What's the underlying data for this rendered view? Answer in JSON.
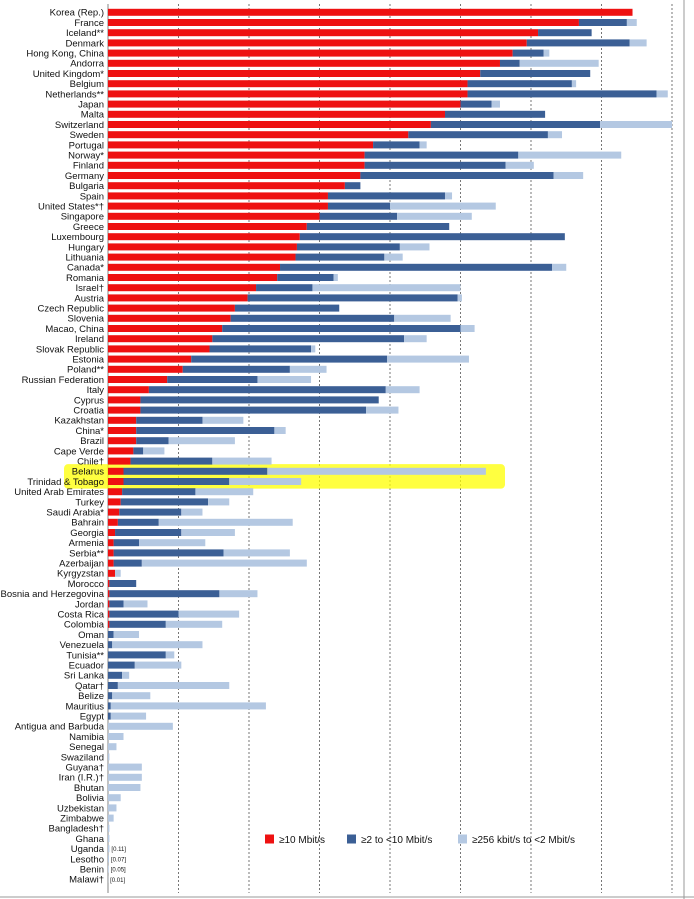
{
  "chart_data": {
    "type": "bar",
    "orientation": "horizontal",
    "stacked": true,
    "title": "",
    "xlabel": "",
    "ylabel": "",
    "xlim": [
      0,
      40
    ],
    "grid": true,
    "legend_position": "bottom-right",
    "highlighted": [
      "Belarus",
      "Trinidad & Tobago"
    ],
    "colors": {
      "s1": "#ee1111",
      "s2": "#3b5f95",
      "s3": "#b4c8e2",
      "highlight": "#ffff00",
      "grid": "#555555"
    },
    "series": [
      {
        "name": "≥10 Mbit/s",
        "key": "s1"
      },
      {
        "name": "≥2 to <10 Mbit/s",
        "key": "s2"
      },
      {
        "name": "≥256 kbit/s to <2 Mbit/s",
        "key": "s3"
      }
    ],
    "rows": [
      {
        "label": "Korea (Rep.)",
        "s1": 37.2,
        "s2": 0,
        "s3": 0
      },
      {
        "label": "France",
        "s1": 33.4,
        "s2": 3.4,
        "s3": 0.7
      },
      {
        "label": "Iceland**",
        "s1": 30.5,
        "s2": 3.8,
        "s3": 0
      },
      {
        "label": "Denmark",
        "s1": 29.7,
        "s2": 7.3,
        "s3": 1.2
      },
      {
        "label": "Hong Kong, China",
        "s1": 28.7,
        "s2": 2.2,
        "s3": 0.4
      },
      {
        "label": "Andorra",
        "s1": 27.8,
        "s2": 1.4,
        "s3": 5.6
      },
      {
        "label": "United Kingdom*",
        "s1": 26.4,
        "s2": 7.8,
        "s3": 0
      },
      {
        "label": "Belgium",
        "s1": 25.5,
        "s2": 7.4,
        "s3": 0.3
      },
      {
        "label": "Netherlands**",
        "s1": 25.5,
        "s2": 13.4,
        "s3": 0.8
      },
      {
        "label": "Japan",
        "s1": 25.0,
        "s2": 2.2,
        "s3": 0.6
      },
      {
        "label": "Malta",
        "s1": 23.9,
        "s2": 7.1,
        "s3": 0
      },
      {
        "label": "Switzerland",
        "s1": 22.9,
        "s2": 12.0,
        "s3": 5.1
      },
      {
        "label": "Sweden",
        "s1": 21.3,
        "s2": 9.9,
        "s3": 1.0
      },
      {
        "label": "Portugal",
        "s1": 18.8,
        "s2": 3.3,
        "s3": 0.5
      },
      {
        "label": "Norway*",
        "s1": 18.2,
        "s2": 10.9,
        "s3": 7.3
      },
      {
        "label": "Finland",
        "s1": 18.2,
        "s2": 10.0,
        "s3": 2.0
      },
      {
        "label": "Germany",
        "s1": 17.9,
        "s2": 13.7,
        "s3": 2.1
      },
      {
        "label": "Bulgaria",
        "s1": 16.8,
        "s2": 1.1,
        "s3": 0
      },
      {
        "label": "Spain",
        "s1": 15.6,
        "s2": 8.3,
        "s3": 0.5
      },
      {
        "label": "United States*†",
        "s1": 15.6,
        "s2": 4.4,
        "s3": 7.5
      },
      {
        "label": "Singapore",
        "s1": 15.0,
        "s2": 5.5,
        "s3": 5.3
      },
      {
        "label": "Greece",
        "s1": 14.1,
        "s2": 10.1,
        "s3": 0
      },
      {
        "label": "Luxembourg",
        "s1": 13.6,
        "s2": 18.8,
        "s3": 0
      },
      {
        "label": "Hungary",
        "s1": 13.4,
        "s2": 7.3,
        "s3": 2.1
      },
      {
        "label": "Lithuania",
        "s1": 13.3,
        "s2": 6.3,
        "s3": 1.3
      },
      {
        "label": "Canada*",
        "s1": 12.2,
        "s2": 19.3,
        "s3": 1.0
      },
      {
        "label": "Romania",
        "s1": 12.0,
        "s2": 4.0,
        "s3": 0.3
      },
      {
        "label": "Israel†",
        "s1": 10.5,
        "s2": 4.0,
        "s3": 10.5
      },
      {
        "label": "Austria",
        "s1": 9.9,
        "s2": 14.9,
        "s3": 0.3
      },
      {
        "label": "Czech Republic",
        "s1": 9.0,
        "s2": 7.4,
        "s3": 0
      },
      {
        "label": "Slovenia",
        "s1": 8.7,
        "s2": 11.6,
        "s3": 4.0
      },
      {
        "label": "Macao, China",
        "s1": 8.1,
        "s2": 16.9,
        "s3": 1.0
      },
      {
        "label": "Ireland",
        "s1": 7.4,
        "s2": 13.6,
        "s3": 1.6
      },
      {
        "label": "Slovak Republic",
        "s1": 7.2,
        "s2": 7.2,
        "s3": 0.3
      },
      {
        "label": "Estonia",
        "s1": 5.9,
        "s2": 13.9,
        "s3": 5.8
      },
      {
        "label": "Poland**",
        "s1": 5.3,
        "s2": 7.6,
        "s3": 2.6
      },
      {
        "label": "Russian Federation",
        "s1": 4.2,
        "s2": 6.4,
        "s3": 3.8
      },
      {
        "label": "Italy",
        "s1": 2.9,
        "s2": 16.8,
        "s3": 2.4
      },
      {
        "label": "Cyprus",
        "s1": 2.3,
        "s2": 16.9,
        "s3": 0
      },
      {
        "label": "Croatia",
        "s1": 2.3,
        "s2": 16.0,
        "s3": 2.3
      },
      {
        "label": "Kazakhstan",
        "s1": 2.0,
        "s2": 4.7,
        "s3": 2.9
      },
      {
        "label": "China*",
        "s1": 2.0,
        "s2": 9.8,
        "s3": 0.8
      },
      {
        "label": "Brazil",
        "s1": 2.0,
        "s2": 2.3,
        "s3": 4.7
      },
      {
        "label": "Cape Verde",
        "s1": 1.8,
        "s2": 0.7,
        "s3": 1.5
      },
      {
        "label": "Chile†",
        "s1": 1.6,
        "s2": 5.8,
        "s3": 4.2
      },
      {
        "label": "Belarus",
        "s1": 1.1,
        "s2": 10.2,
        "s3": 15.5
      },
      {
        "label": "Trinidad & Tobago",
        "s1": 1.1,
        "s2": 7.5,
        "s3": 5.1
      },
      {
        "label": "United Arab Emirates",
        "s1": 1.0,
        "s2": 5.2,
        "s3": 4.1
      },
      {
        "label": "Turkey",
        "s1": 0.9,
        "s2": 6.2,
        "s3": 1.5
      },
      {
        "label": "Saudi Arabia*",
        "s1": 0.8,
        "s2": 4.4,
        "s3": 1.5
      },
      {
        "label": "Bahrain",
        "s1": 0.7,
        "s2": 2.9,
        "s3": 9.5
      },
      {
        "label": "Georgia",
        "s1": 0.5,
        "s2": 4.7,
        "s3": 3.8
      },
      {
        "label": "Armenia",
        "s1": 0.4,
        "s2": 1.8,
        "s3": 4.7
      },
      {
        "label": "Serbia**",
        "s1": 0.4,
        "s2": 7.8,
        "s3": 4.7
      },
      {
        "label": "Azerbaijan",
        "s1": 0.4,
        "s2": 2.0,
        "s3": 11.7
      },
      {
        "label": "Kyrgyzstan",
        "s1": 0.5,
        "s2": 0,
        "s3": 0.4
      },
      {
        "label": "Morocco",
        "s1": 0.1,
        "s2": 1.9,
        "s3": 0
      },
      {
        "label": "Bosnia and Herzegovina",
        "s1": 0.1,
        "s2": 7.8,
        "s3": 2.7
      },
      {
        "label": "Jordan",
        "s1": 0.1,
        "s2": 1.0,
        "s3": 1.7
      },
      {
        "label": "Costa Rica",
        "s1": 0.1,
        "s2": 4.9,
        "s3": 4.3
      },
      {
        "label": "Colombia",
        "s1": 0.1,
        "s2": 4.0,
        "s3": 4.0
      },
      {
        "label": "Oman",
        "s1": 0,
        "s2": 0.4,
        "s3": 1.8
      },
      {
        "label": "Venezuela",
        "s1": 0,
        "s2": 0.3,
        "s3": 6.4
      },
      {
        "label": "Tunisia**",
        "s1": 0,
        "s2": 4.1,
        "s3": 0.6
      },
      {
        "label": "Ecuador",
        "s1": 0,
        "s2": 1.9,
        "s3": 3.3
      },
      {
        "label": "Sri Lanka",
        "s1": 0,
        "s2": 1.0,
        "s3": 0.5
      },
      {
        "label": "Qatar†",
        "s1": 0,
        "s2": 0.7,
        "s3": 7.9
      },
      {
        "label": "Belize",
        "s1": 0,
        "s2": 0.3,
        "s3": 2.7
      },
      {
        "label": "Mauritius",
        "s1": 0,
        "s2": 0.2,
        "s3": 11.0
      },
      {
        "label": "Egypt",
        "s1": 0,
        "s2": 0.2,
        "s3": 2.5
      },
      {
        "label": "Antigua and Barbuda",
        "s1": 0,
        "s2": 0,
        "s3": 4.6
      },
      {
        "label": "Namibia",
        "s1": 0,
        "s2": 0,
        "s3": 1.1
      },
      {
        "label": "Senegal",
        "s1": 0,
        "s2": 0,
        "s3": 0.6
      },
      {
        "label": "Swaziland",
        "s1": 0,
        "s2": 0,
        "s3": 0.1
      },
      {
        "label": "Guyana†",
        "s1": 0,
        "s2": 0,
        "s3": 2.4
      },
      {
        "label": "Iran (I.R.)†",
        "s1": 0,
        "s2": 0,
        "s3": 2.4
      },
      {
        "label": "Bhutan",
        "s1": 0,
        "s2": 0,
        "s3": 2.3
      },
      {
        "label": "Bolivia",
        "s1": 0,
        "s2": 0,
        "s3": 0.9
      },
      {
        "label": "Uzbekistan",
        "s1": 0,
        "s2": 0,
        "s3": 0.6
      },
      {
        "label": "Zimbabwe",
        "s1": 0,
        "s2": 0,
        "s3": 0.4
      },
      {
        "label": "Bangladesh†",
        "s1": 0,
        "s2": 0,
        "s3": 0.1
      },
      {
        "label": "Ghana",
        "s1": 0,
        "s2": 0,
        "s3": 0.1
      },
      {
        "label": "Uganda",
        "s1": 0,
        "s2": 0,
        "s3": 0.1,
        "annotation": "[0.11]"
      },
      {
        "label": "Lesotho",
        "s1": 0,
        "s2": 0,
        "s3": 0.07,
        "annotation": "[0.07]"
      },
      {
        "label": "Benin",
        "s1": 0,
        "s2": 0,
        "s3": 0.05,
        "annotation": "[0.05]"
      },
      {
        "label": "Malawi†",
        "s1": 0,
        "s2": 0,
        "s3": 0.01,
        "annotation": "[0.01]"
      }
    ]
  }
}
